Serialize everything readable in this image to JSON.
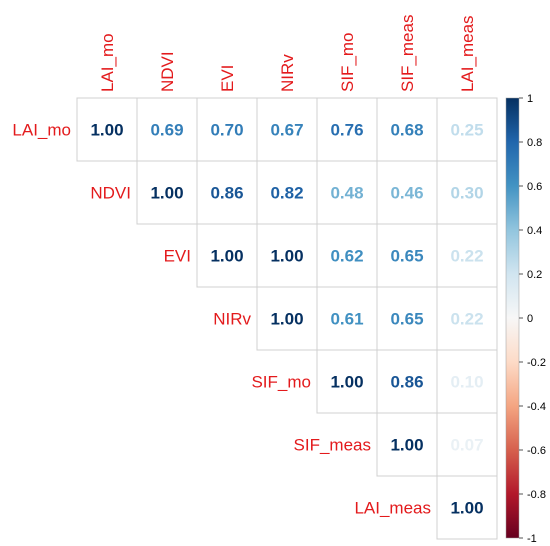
{
  "chart_data": {
    "type": "heatmap",
    "variables": [
      "LAI_mo",
      "NDVI",
      "EVI",
      "NIRv",
      "SIF_mo",
      "SIF_meas",
      "LAI_meas"
    ],
    "layout": "upper-triangle",
    "values": [
      [
        1.0,
        0.69,
        0.7,
        0.67,
        0.76,
        0.68,
        0.25
      ],
      [
        null,
        1.0,
        0.86,
        0.82,
        0.48,
        0.46,
        0.3
      ],
      [
        null,
        null,
        1.0,
        1.0,
        0.62,
        0.65,
        0.22
      ],
      [
        null,
        null,
        null,
        1.0,
        0.61,
        0.65,
        0.22
      ],
      [
        null,
        null,
        null,
        null,
        1.0,
        0.86,
        0.1
      ],
      [
        null,
        null,
        null,
        null,
        null,
        1.0,
        0.07
      ],
      [
        null,
        null,
        null,
        null,
        null,
        null,
        1.0
      ]
    ],
    "colorbar": {
      "range": [
        -1,
        1
      ],
      "ticks": [
        "1",
        "0.8",
        "0.6",
        "0.4",
        "0.2",
        "0",
        "-0.2",
        "-0.4",
        "-0.6",
        "-0.8",
        "-1"
      ],
      "colors": {
        "negative": "#67001f",
        "neutral": "#f7f7f7",
        "positive": "#053061"
      }
    },
    "label_color": "#e31a1c"
  }
}
